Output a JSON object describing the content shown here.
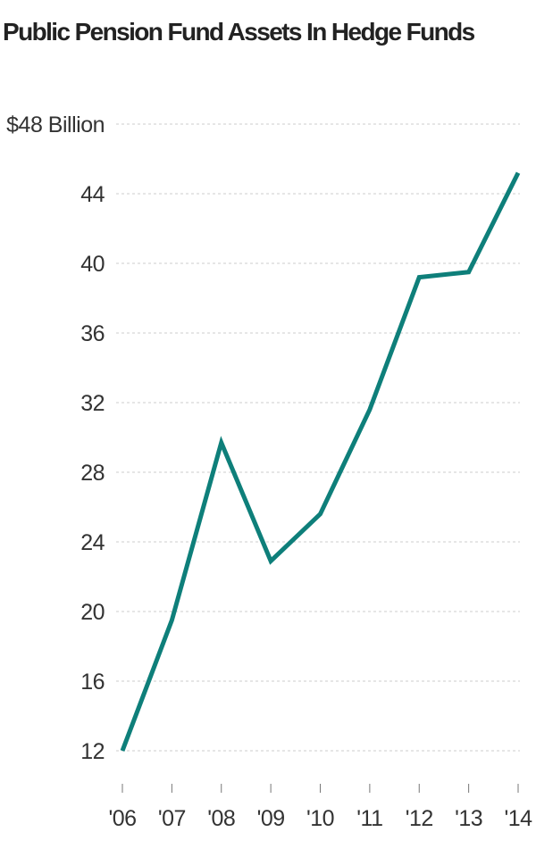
{
  "colors": {
    "line": "#0e7f7a",
    "grid": "#cccccc",
    "text": "#333333"
  },
  "chart_data": {
    "type": "line",
    "title": "Public Pension Fund Assets In Hedge Funds",
    "xlabel": "",
    "ylabel": "",
    "categories": [
      "'06",
      "'07",
      "'08",
      "'09",
      "'10",
      "'11",
      "'12",
      "'13",
      "'14"
    ],
    "series": [
      {
        "values": [
          12.0,
          19.5,
          29.7,
          22.9,
          25.6,
          31.6,
          39.2,
          39.5,
          45.2
        ]
      }
    ],
    "ylim": [
      12,
      48
    ],
    "y_ticks": [
      12,
      16,
      20,
      24,
      28,
      32,
      36,
      40,
      44,
      48
    ],
    "y_tick_labels": [
      "12",
      "16",
      "20",
      "24",
      "28",
      "32",
      "36",
      "40",
      "44",
      "$48 Billion"
    ],
    "grid": true,
    "grid_style": "dashed horizontal",
    "legend": "none"
  }
}
